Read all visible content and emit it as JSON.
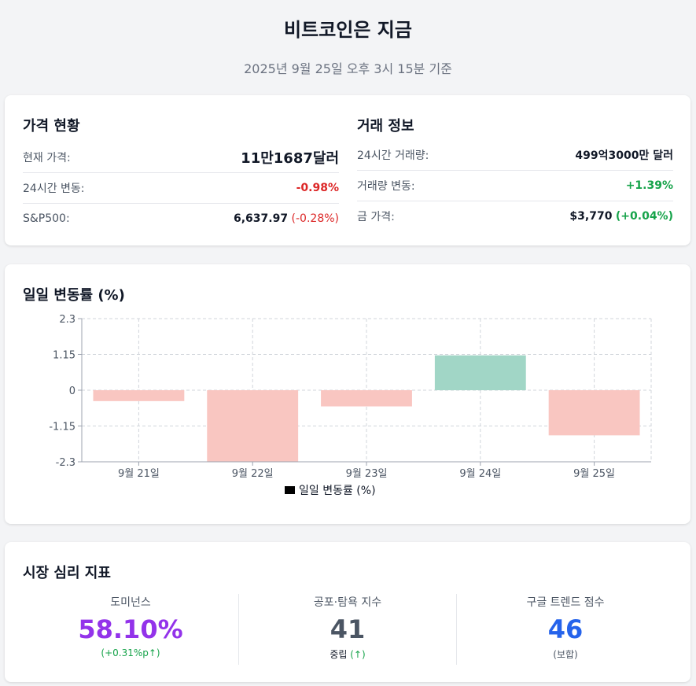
{
  "header": {
    "title": "비트코인은 지금",
    "subtitle": "2025년 9월 25일 오후 3시 15분 기준"
  },
  "price_status": {
    "title": "가격 현황",
    "rows": [
      {
        "label": "현재 가격:",
        "value": "11만1687달러"
      },
      {
        "label": "24시간 변동:",
        "value": "-0.98%"
      },
      {
        "label": "S&P500:",
        "value": "6,637.97",
        "change": "(-0.28%)"
      }
    ]
  },
  "trade_info": {
    "title": "거래 정보",
    "rows": [
      {
        "label": "24시간 거래량:",
        "value": "499억3000만 달러"
      },
      {
        "label": "거래량 변동:",
        "value": "+1.39%"
      },
      {
        "label": "금 가격:",
        "value": "$3,770",
        "change": "(+0.04%)"
      }
    ]
  },
  "chart_section": {
    "title": "일일 변동률 (%)"
  },
  "chart_data": {
    "type": "bar",
    "categories": [
      "9월 21일",
      "9월 22일",
      "9월 23일",
      "9월 24일",
      "9월 25일"
    ],
    "series": [
      {
        "name": "일일 변동률 (%)",
        "values": [
          -0.35,
          -2.3,
          -0.52,
          1.12,
          -1.45
        ]
      }
    ],
    "yticks": [
      "2.3",
      "1.15",
      "0",
      "-1.15",
      "-2.3"
    ],
    "ylim": [
      -2.3,
      2.3
    ],
    "grid": true,
    "legend": "bottom",
    "colors": {
      "positive": "#a1d6c6",
      "negative": "#f9c6c1",
      "legend_swatch": "#000000"
    }
  },
  "sentiment": {
    "title": "시장 심리 지표",
    "metrics": [
      {
        "label": "도미넌스",
        "value": "58.10%",
        "sub": "(+0.31%p↑)",
        "color": "#9333ea",
        "sub_color": "#16a34a"
      },
      {
        "label": "공포·탐욕 지수",
        "value": "41",
        "sub": "중립",
        "sub2": "(↑)",
        "color": "#4b5563",
        "sub_color": "#111827",
        "sub2_color": "#16a34a"
      },
      {
        "label": "구글 트렌드 점수",
        "value": "46",
        "sub": "(보합)",
        "color": "#2563eb",
        "sub_color": "#4b5563"
      }
    ]
  }
}
